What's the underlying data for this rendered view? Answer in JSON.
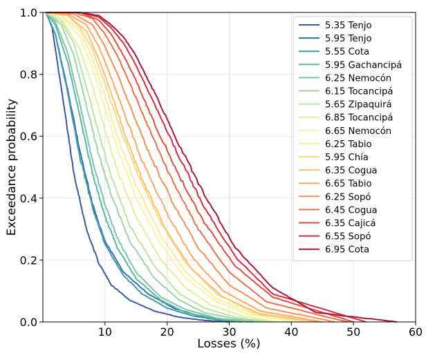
{
  "chart_data": {
    "type": "line",
    "title": "",
    "xlabel": "Losses (%)",
    "ylabel": "Exceedance probability",
    "xlim": [
      0,
      60
    ],
    "ylim": [
      0,
      1
    ],
    "xticks": [
      10,
      20,
      30,
      40,
      50,
      60
    ],
    "xtick_labels": [
      "10",
      "20",
      "30",
      "40",
      "50",
      "60"
    ],
    "yticks": [
      0,
      0.2,
      0.4,
      0.6,
      0.8,
      1.0
    ],
    "ytick_labels": [
      "0.0",
      "0.2",
      "0.4",
      "0.6",
      "0.8",
      "1.0"
    ],
    "grid": true,
    "legend_position": "top-right",
    "series": [
      {
        "name": "5.35 Tenjo",
        "color": "#3a56a8",
        "points": [
          [
            0.5,
            1.0
          ],
          [
            1.5,
            0.95
          ],
          [
            3,
            0.75
          ],
          [
            5,
            0.48
          ],
          [
            7,
            0.3
          ],
          [
            9,
            0.19
          ],
          [
            11,
            0.12
          ],
          [
            14,
            0.07
          ],
          [
            18,
            0.035
          ],
          [
            22,
            0.015
          ],
          [
            26,
            0.005
          ],
          [
            30,
            0.0
          ]
        ]
      },
      {
        "name": "5.95 Tenjo",
        "color": "#3070b8",
        "points": [
          [
            0.5,
            1.0
          ],
          [
            2,
            0.93
          ],
          [
            4,
            0.75
          ],
          [
            6,
            0.55
          ],
          [
            8,
            0.38
          ],
          [
            10,
            0.26
          ],
          [
            13,
            0.16
          ],
          [
            17,
            0.09
          ],
          [
            21,
            0.045
          ],
          [
            25,
            0.02
          ],
          [
            30,
            0.005
          ],
          [
            34,
            0.0
          ]
        ]
      },
      {
        "name": "5.55 Cota",
        "color": "#3a9aa8",
        "points": [
          [
            0.5,
            1.0
          ],
          [
            2,
            0.93
          ],
          [
            4,
            0.74
          ],
          [
            6,
            0.53
          ],
          [
            8,
            0.37
          ],
          [
            10,
            0.25
          ],
          [
            13,
            0.15
          ],
          [
            16,
            0.09
          ],
          [
            20,
            0.045
          ],
          [
            24,
            0.02
          ],
          [
            28,
            0.007
          ],
          [
            32,
            0.0
          ]
        ]
      },
      {
        "name": "5.95 Gachancipá",
        "color": "#54b8a0",
        "points": [
          [
            0.5,
            1.0
          ],
          [
            2,
            0.96
          ],
          [
            4,
            0.84
          ],
          [
            6,
            0.66
          ],
          [
            8,
            0.48
          ],
          [
            10,
            0.34
          ],
          [
            12,
            0.24
          ],
          [
            15,
            0.14
          ],
          [
            19,
            0.07
          ],
          [
            23,
            0.03
          ],
          [
            28,
            0.01
          ],
          [
            33,
            0.0
          ]
        ]
      },
      {
        "name": "6.25 Nemocón",
        "color": "#78c6a4",
        "points": [
          [
            0.5,
            1.0
          ],
          [
            2,
            0.97
          ],
          [
            4,
            0.87
          ],
          [
            6,
            0.7
          ],
          [
            8,
            0.52
          ],
          [
            10,
            0.38
          ],
          [
            12,
            0.27
          ],
          [
            15,
            0.16
          ],
          [
            19,
            0.08
          ],
          [
            23,
            0.04
          ],
          [
            28,
            0.012
          ],
          [
            34,
            0.0
          ]
        ]
      },
      {
        "name": "6.15 Tocancipá",
        "color": "#9cd4a4",
        "points": [
          [
            0.5,
            1.0
          ],
          [
            3,
            0.96
          ],
          [
            5,
            0.86
          ],
          [
            7,
            0.7
          ],
          [
            9,
            0.54
          ],
          [
            11,
            0.41
          ],
          [
            14,
            0.26
          ],
          [
            18,
            0.14
          ],
          [
            22,
            0.07
          ],
          [
            26,
            0.03
          ],
          [
            31,
            0.01
          ],
          [
            36,
            0.0
          ]
        ]
      },
      {
        "name": "5.65 Zipaquirá",
        "color": "#bce2a0",
        "points": [
          [
            0.5,
            1.0
          ],
          [
            3,
            0.97
          ],
          [
            5,
            0.9
          ],
          [
            7,
            0.76
          ],
          [
            9,
            0.61
          ],
          [
            11,
            0.47
          ],
          [
            14,
            0.31
          ],
          [
            18,
            0.18
          ],
          [
            22,
            0.09
          ],
          [
            26,
            0.045
          ],
          [
            31,
            0.015
          ],
          [
            37,
            0.0
          ]
        ]
      },
      {
        "name": "6.85 Tocancipá",
        "color": "#e2f098",
        "points": [
          [
            0.5,
            1.0
          ],
          [
            3,
            0.98
          ],
          [
            6,
            0.88
          ],
          [
            8,
            0.76
          ],
          [
            10,
            0.62
          ],
          [
            12,
            0.49
          ],
          [
            15,
            0.34
          ],
          [
            19,
            0.2
          ],
          [
            23,
            0.11
          ],
          [
            27,
            0.055
          ],
          [
            32,
            0.02
          ],
          [
            38,
            0.0
          ]
        ]
      },
      {
        "name": "6.65 Nemocón",
        "color": "#f4f6a4",
        "points": [
          [
            0.5,
            1.0
          ],
          [
            3,
            0.99
          ],
          [
            6,
            0.92
          ],
          [
            8,
            0.82
          ],
          [
            10,
            0.69
          ],
          [
            12,
            0.56
          ],
          [
            15,
            0.4
          ],
          [
            19,
            0.25
          ],
          [
            23,
            0.14
          ],
          [
            28,
            0.065
          ],
          [
            33,
            0.025
          ],
          [
            40,
            0.0
          ]
        ]
      },
      {
        "name": "6.25 Tabio",
        "color": "#fcec96",
        "points": [
          [
            0.5,
            1.0
          ],
          [
            3,
            0.99
          ],
          [
            6,
            0.94
          ],
          [
            8,
            0.85
          ],
          [
            10,
            0.73
          ],
          [
            12,
            0.6
          ],
          [
            15,
            0.44
          ],
          [
            19,
            0.28
          ],
          [
            23,
            0.16
          ],
          [
            28,
            0.075
          ],
          [
            34,
            0.025
          ],
          [
            42,
            0.0
          ]
        ]
      },
      {
        "name": "5.95 Chía",
        "color": "#fdd880",
        "points": [
          [
            0.5,
            1.0
          ],
          [
            4,
            0.99
          ],
          [
            6,
            0.95
          ],
          [
            8,
            0.88
          ],
          [
            10,
            0.77
          ],
          [
            12,
            0.65
          ],
          [
            15,
            0.49
          ],
          [
            19,
            0.32
          ],
          [
            23,
            0.19
          ],
          [
            28,
            0.09
          ],
          [
            34,
            0.03
          ],
          [
            44,
            0.0
          ]
        ]
      },
      {
        "name": "6.35 Cogua",
        "color": "#fdc070",
        "points": [
          [
            0.5,
            1.0
          ],
          [
            4,
            0.99
          ],
          [
            7,
            0.94
          ],
          [
            9,
            0.85
          ],
          [
            11,
            0.74
          ],
          [
            13,
            0.62
          ],
          [
            16,
            0.46
          ],
          [
            20,
            0.29
          ],
          [
            24,
            0.17
          ],
          [
            29,
            0.08
          ],
          [
            35,
            0.025
          ],
          [
            44,
            0.0
          ]
        ]
      },
      {
        "name": "6.65 Tabio",
        "color": "#fca85e",
        "points": [
          [
            0.5,
            1.0
          ],
          [
            4,
            0.995
          ],
          [
            7,
            0.96
          ],
          [
            9,
            0.89
          ],
          [
            11,
            0.79
          ],
          [
            13,
            0.68
          ],
          [
            16,
            0.52
          ],
          [
            20,
            0.35
          ],
          [
            24,
            0.21
          ],
          [
            29,
            0.1
          ],
          [
            35,
            0.035
          ],
          [
            45,
            0.0
          ]
        ]
      },
      {
        "name": "6.25 Sopó",
        "color": "#f88e52",
        "points": [
          [
            0.5,
            1.0
          ],
          [
            5,
            0.995
          ],
          [
            8,
            0.96
          ],
          [
            10,
            0.89
          ],
          [
            12,
            0.8
          ],
          [
            14,
            0.7
          ],
          [
            17,
            0.55
          ],
          [
            21,
            0.38
          ],
          [
            25,
            0.24
          ],
          [
            30,
            0.12
          ],
          [
            36,
            0.045
          ],
          [
            47,
            0.0
          ]
        ]
      },
      {
        "name": "6.45 Cogua",
        "color": "#ee6e44",
        "points": [
          [
            0.5,
            1.0
          ],
          [
            5,
            1.0
          ],
          [
            8,
            0.98
          ],
          [
            10,
            0.93
          ],
          [
            12,
            0.86
          ],
          [
            14,
            0.77
          ],
          [
            17,
            0.63
          ],
          [
            21,
            0.45
          ],
          [
            25,
            0.3
          ],
          [
            30,
            0.16
          ],
          [
            36,
            0.065
          ],
          [
            49,
            0.0
          ]
        ]
      },
      {
        "name": "6.35 Cajicá",
        "color": "#e04c3c",
        "points": [
          [
            0.5,
            1.0
          ],
          [
            6,
            1.0
          ],
          [
            9,
            0.975
          ],
          [
            11,
            0.93
          ],
          [
            13,
            0.86
          ],
          [
            15,
            0.78
          ],
          [
            18,
            0.64
          ],
          [
            22,
            0.47
          ],
          [
            26,
            0.32
          ],
          [
            31,
            0.18
          ],
          [
            37,
            0.08
          ],
          [
            50,
            0.0
          ]
        ]
      },
      {
        "name": "6.55 Sopó",
        "color": "#d42c3a",
        "points": [
          [
            0.5,
            1.0
          ],
          [
            6,
            1.0
          ],
          [
            9,
            0.985
          ],
          [
            11,
            0.95
          ],
          [
            13,
            0.9
          ],
          [
            15,
            0.83
          ],
          [
            18,
            0.7
          ],
          [
            22,
            0.53
          ],
          [
            26,
            0.37
          ],
          [
            31,
            0.21
          ],
          [
            37,
            0.09
          ],
          [
            52,
            0.0
          ]
        ]
      },
      {
        "name": "6.95 Cota",
        "color": "#a8143e",
        "points": [
          [
            0.5,
            1.0
          ],
          [
            6,
            1.0
          ],
          [
            9,
            0.99
          ],
          [
            11,
            0.96
          ],
          [
            13,
            0.92
          ],
          [
            15,
            0.86
          ],
          [
            18,
            0.74
          ],
          [
            22,
            0.57
          ],
          [
            26,
            0.41
          ],
          [
            31,
            0.24
          ],
          [
            37,
            0.11
          ],
          [
            44,
            0.03
          ],
          [
            57,
            0.0
          ]
        ]
      }
    ]
  }
}
